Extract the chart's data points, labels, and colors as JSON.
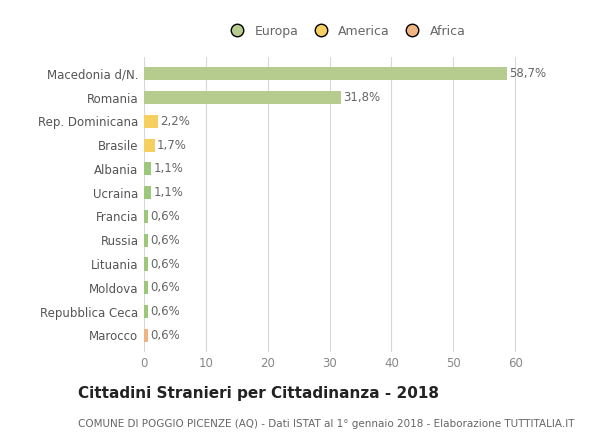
{
  "categories": [
    "Marocco",
    "Repubblica Ceca",
    "Moldova",
    "Lituania",
    "Russia",
    "Francia",
    "Ucraina",
    "Albania",
    "Brasile",
    "Rep. Dominicana",
    "Romania",
    "Macedonia d/N."
  ],
  "values": [
    0.6,
    0.6,
    0.6,
    0.6,
    0.6,
    0.6,
    1.1,
    1.1,
    1.7,
    2.2,
    31.8,
    58.7
  ],
  "labels": [
    "0,6%",
    "0,6%",
    "0,6%",
    "0,6%",
    "0,6%",
    "0,6%",
    "1,1%",
    "1,1%",
    "1,7%",
    "2,2%",
    "31,8%",
    "58,7%"
  ],
  "colors": [
    "#f0b482",
    "#9dc87a",
    "#9dc87a",
    "#9dc87a",
    "#9dc87a",
    "#9dc87a",
    "#9dc87a",
    "#9dc87a",
    "#f5d060",
    "#f5d060",
    "#b5cc8e",
    "#b5cc8e"
  ],
  "continent": [
    "Africa",
    "Europa",
    "Europa",
    "Europa",
    "Europa",
    "Europa",
    "Europa",
    "Europa",
    "America",
    "America",
    "Europa",
    "Europa"
  ],
  "legend_labels": [
    "Europa",
    "America",
    "Africa"
  ],
  "legend_colors": [
    "#b5cc8e",
    "#f5d060",
    "#f0b482"
  ],
  "xlim": [
    0,
    65
  ],
  "xticks": [
    0,
    10,
    20,
    30,
    40,
    50,
    60
  ],
  "title": "Cittadini Stranieri per Cittadinanza - 2018",
  "subtitle": "COMUNE DI POGGIO PICENZE (AQ) - Dati ISTAT al 1° gennaio 2018 - Elaborazione TUTTITALIA.IT",
  "bg_color": "#ffffff",
  "grid_color": "#d8d8d8",
  "bar_height": 0.55,
  "label_fontsize": 8.5,
  "tick_fontsize": 8.5,
  "title_fontsize": 11,
  "subtitle_fontsize": 7.5
}
